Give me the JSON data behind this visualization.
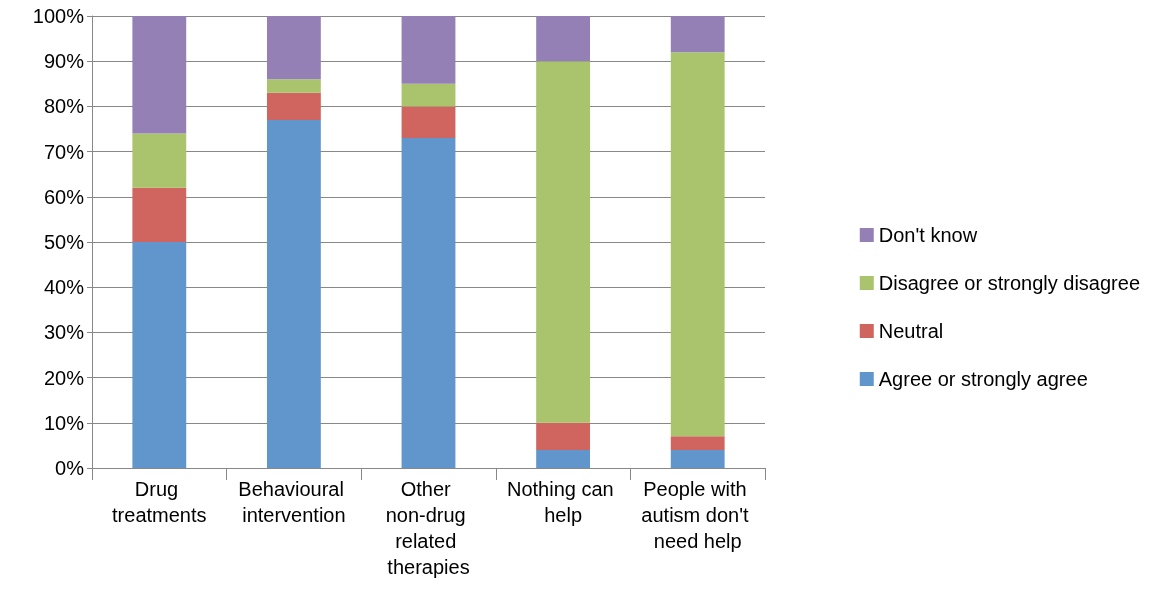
{
  "chart_data": {
    "type": "bar",
    "stacked": true,
    "categories": [
      "Drug treatments",
      "Behavioural intervention",
      "Other non-drug related therapies",
      "Nothing can help",
      "People with autism don't need help"
    ],
    "series": [
      {
        "name": "Agree or strongly agree",
        "color": "#6096cb",
        "values": [
          50,
          77,
          73,
          4,
          4
        ]
      },
      {
        "name": "Neutral",
        "color": "#d0655f",
        "values": [
          12,
          6,
          7,
          6,
          3
        ]
      },
      {
        "name": "Disagree or strongly disagree",
        "color": "#a9c46c",
        "values": [
          12,
          3,
          5,
          80,
          85
        ]
      },
      {
        "name": "Don't know",
        "color": "#9580b6",
        "values": [
          26,
          14,
          15,
          10,
          8
        ]
      }
    ],
    "ylim": [
      0,
      100
    ],
    "yticks": [
      {
        "value": 0,
        "label": "0%"
      },
      {
        "value": 10,
        "label": "10%"
      },
      {
        "value": 20,
        "label": "20%"
      },
      {
        "value": 30,
        "label": "30%"
      },
      {
        "value": 40,
        "label": "40%"
      },
      {
        "value": 50,
        "label": "50%"
      },
      {
        "value": 60,
        "label": "60%"
      },
      {
        "value": 70,
        "label": "70%"
      },
      {
        "value": 80,
        "label": "80%"
      },
      {
        "value": 90,
        "label": "90%"
      },
      {
        "value": 100,
        "label": "100%"
      }
    ],
    "grid": "y",
    "legend": "right"
  }
}
